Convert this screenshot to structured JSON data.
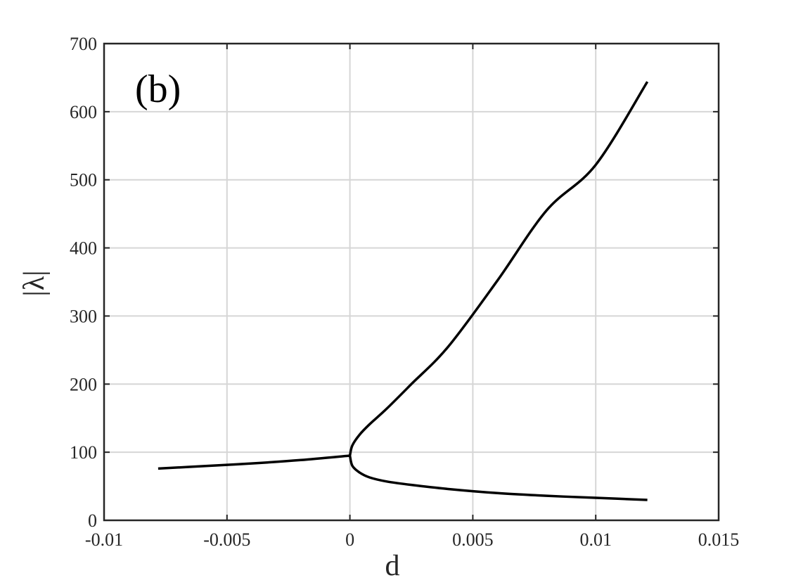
{
  "chart_data": {
    "type": "line",
    "title": "",
    "panel_label": "(b)",
    "xlabel": "d",
    "ylabel": "|λ|",
    "xlim": [
      -0.01,
      0.015
    ],
    "ylim": [
      0,
      700
    ],
    "x_ticks": [
      -0.01,
      -0.005,
      0,
      0.005,
      0.01,
      0.015
    ],
    "x_tick_labels": [
      "-0.01",
      "-0.005",
      "0",
      "0.005",
      "0.01",
      "0.015"
    ],
    "y_ticks": [
      0,
      100,
      200,
      300,
      400,
      500,
      600,
      700
    ],
    "y_tick_labels": [
      "0",
      "100",
      "200",
      "300",
      "400",
      "500",
      "600",
      "700"
    ],
    "grid": true,
    "colors": {
      "series": "#000000",
      "grid": "#d6d6d6",
      "axes": "#262626"
    },
    "series": [
      {
        "x": [
          -0.0078,
          -0.006,
          -0.004,
          -0.002,
          0.0
        ],
        "y": [
          76,
          79.5,
          83.5,
          88.5,
          95
        ]
      },
      {
        "x": [
          0.0,
          0.0001,
          0.0004,
          0.0008,
          0.0015,
          0.0025,
          0.004,
          0.006,
          0.008,
          0.01,
          0.0121
        ],
        "y": [
          95,
          110,
          126,
          141,
          164,
          200,
          255,
          352,
          455,
          522,
          644
        ]
      },
      {
        "x": [
          0.0,
          0.0001,
          0.0004,
          0.0008,
          0.0015,
          0.0025,
          0.004,
          0.006,
          0.008,
          0.01,
          0.0121
        ],
        "y": [
          95,
          80,
          70,
          63,
          57,
          52,
          46,
          40,
          36,
          33,
          30
        ]
      }
    ]
  }
}
